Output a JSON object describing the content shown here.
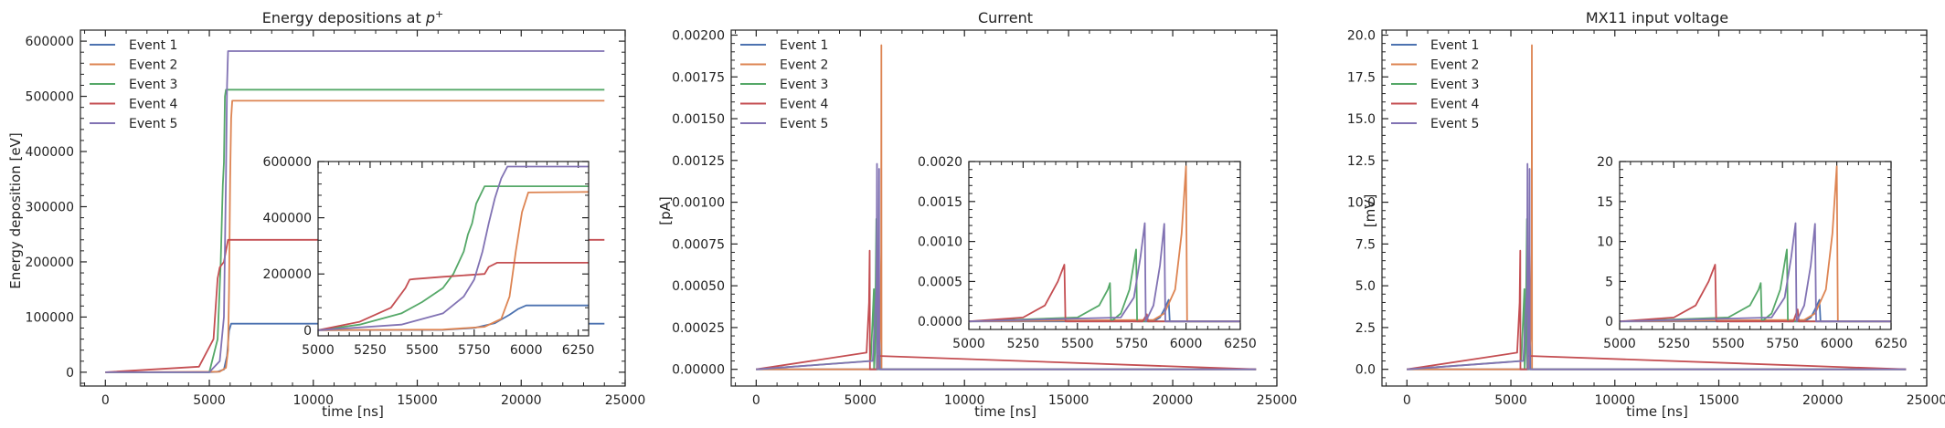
{
  "figure": {
    "legend_placement": "upper-left",
    "background": "#ffffff"
  },
  "series_styles": [
    {
      "name": "Event 1",
      "color": "#4c72b0"
    },
    {
      "name": "Event 2",
      "color": "#dd8452"
    },
    {
      "name": "Event 3",
      "color": "#55a868"
    },
    {
      "name": "Event 4",
      "color": "#c44e52"
    },
    {
      "name": "Event 5",
      "color": "#8172b3"
    }
  ],
  "chart_data": [
    {
      "type": "line",
      "title": "Energy depositions at ",
      "title_symbol": "p",
      "title_sup": "+",
      "xlabel": "time [ns]",
      "ylabel": "Energy deposition [eV]",
      "xlim": [
        -1200,
        25000
      ],
      "ylim": [
        -25000,
        620000
      ],
      "xticks": [
        0,
        5000,
        10000,
        15000,
        20000,
        25000
      ],
      "xtick_labels": [
        "0",
        "5000",
        "10000",
        "15000",
        "20000",
        "25000"
      ],
      "yticks": [
        0,
        100000,
        200000,
        300000,
        400000,
        500000,
        600000
      ],
      "ytick_labels": [
        "0",
        "100000",
        "200000",
        "300000",
        "400000",
        "500000",
        "600000"
      ],
      "grid": false,
      "series": [
        {
          "name": "Event 1",
          "x": [
            0,
            5000,
            5400,
            5700,
            5850,
            5950,
            6050,
            24000
          ],
          "y": [
            0,
            0,
            1000,
            5000,
            30000,
            75000,
            88000,
            88000
          ]
        },
        {
          "name": "Event 2",
          "x": [
            0,
            5500,
            5800,
            5900,
            5950,
            6000,
            6050,
            6100,
            24000
          ],
          "y": [
            0,
            1000,
            8000,
            40000,
            150000,
            350000,
            460000,
            492000,
            492000
          ]
        },
        {
          "name": "Event 3",
          "x": [
            0,
            5000,
            5400,
            5550,
            5620,
            5650,
            5700,
            5750,
            5800,
            24000
          ],
          "y": [
            0,
            0,
            60000,
            200000,
            300000,
            340000,
            380000,
            500000,
            512000,
            512000
          ]
        },
        {
          "name": "Event 4",
          "x": [
            0,
            4500,
            5200,
            5400,
            5450,
            5500,
            5700,
            5800,
            5900,
            24000
          ],
          "y": [
            0,
            10000,
            60000,
            170000,
            180000,
            190000,
            200000,
            220000,
            240000,
            240000
          ]
        },
        {
          "name": "Event 5",
          "x": [
            0,
            5000,
            5500,
            5700,
            5800,
            5850,
            5900,
            24000
          ],
          "y": [
            0,
            0,
            20000,
            100000,
            350000,
            520000,
            582000,
            582000
          ]
        }
      ],
      "inset": {
        "xlim": [
          5000,
          6300
        ],
        "ylim": [
          -20000,
          600000
        ],
        "xticks": [
          5000,
          5250,
          5500,
          5750,
          6000,
          6250
        ],
        "xtick_labels": [
          "5000",
          "5250",
          "5500",
          "5750",
          "6000",
          "6250"
        ],
        "yticks": [
          0,
          200000,
          400000,
          600000
        ],
        "ytick_labels": [
          "0",
          "200000",
          "400000",
          "600000"
        ],
        "series": [
          {
            "name": "Event 1",
            "x": [
              5000,
              5600,
              5750,
              5850,
              5920,
              5960,
              6000,
              6300
            ],
            "y": [
              0,
              1000,
              8000,
              25000,
              55000,
              75000,
              88000,
              88000
            ]
          },
          {
            "name": "Event 2",
            "x": [
              5000,
              5600,
              5800,
              5880,
              5920,
              5950,
              5980,
              6010,
              6300
            ],
            "y": [
              0,
              2000,
              12000,
              40000,
              120000,
              280000,
              420000,
              490000,
              492000
            ]
          },
          {
            "name": "Event 3",
            "x": [
              5000,
              5200,
              5400,
              5500,
              5600,
              5650,
              5700,
              5720,
              5740,
              5760,
              5800,
              6300
            ],
            "y": [
              0,
              20000,
              60000,
              100000,
              150000,
              200000,
              280000,
              340000,
              380000,
              450000,
              512000,
              512000
            ]
          },
          {
            "name": "Event 4",
            "x": [
              5000,
              5200,
              5350,
              5420,
              5440,
              5460,
              5600,
              5800,
              5820,
              5860,
              6300
            ],
            "y": [
              0,
              30000,
              80000,
              150000,
              180000,
              182000,
              190000,
              200000,
              225000,
              240000,
              240000
            ]
          },
          {
            "name": "Event 5",
            "x": [
              5000,
              5400,
              5600,
              5700,
              5750,
              5790,
              5820,
              5850,
              5880,
              5910,
              6300
            ],
            "y": [
              0,
              20000,
              60000,
              120000,
              180000,
              280000,
              380000,
              470000,
              540000,
              582000,
              582000
            ]
          }
        ]
      }
    },
    {
      "type": "line",
      "title": "Current",
      "xlabel": "time [ns]",
      "ylabel": "[pA]",
      "xlim": [
        -1200,
        25000
      ],
      "ylim": [
        -0.0001,
        0.00203
      ],
      "xticks": [
        0,
        5000,
        10000,
        15000,
        20000,
        25000
      ],
      "xtick_labels": [
        "0",
        "5000",
        "10000",
        "15000",
        "20000",
        "25000"
      ],
      "yticks": [
        0,
        0.00025,
        0.0005,
        0.00075,
        0.001,
        0.00125,
        0.0015,
        0.00175,
        0.002
      ],
      "ytick_labels": [
        "0.00000",
        "0.00025",
        "0.00050",
        "0.00075",
        "0.00100",
        "0.00125",
        "0.00150",
        "0.00175",
        "0.00200"
      ],
      "grid": false,
      "series": [
        {
          "name": "Event 1",
          "x": [
            0,
            5800,
            5880,
            5900,
            5920,
            5940,
            24000
          ],
          "y": [
            0,
            0,
            5e-05,
            0.00015,
            0.00025,
            0,
            0
          ]
        },
        {
          "name": "Event 2",
          "x": [
            0,
            5850,
            5950,
            6000,
            6010,
            6020,
            24000
          ],
          "y": [
            0,
            0,
            0.0002,
            0.0007,
            0.00194,
            0,
            0
          ]
        },
        {
          "name": "Event 3",
          "x": [
            0,
            5500,
            5650,
            5660,
            5700,
            5770,
            5790,
            24000
          ],
          "y": [
            0,
            5e-05,
            0.00048,
            0,
            0.0001,
            0.0009,
            0,
            0
          ]
        },
        {
          "name": "Event 4",
          "x": [
            0,
            5300,
            5420,
            5450,
            5460,
            5800,
            5820,
            24000
          ],
          "y": [
            0,
            0.0001,
            0.0004,
            0.00071,
            0,
            0,
            8e-05,
            0
          ]
        },
        {
          "name": "Event 5",
          "x": [
            0,
            5600,
            5780,
            5800,
            5810,
            5880,
            5900,
            5910,
            24000
          ],
          "y": [
            0,
            5e-05,
            0.0005,
            0.00123,
            0,
            0.0006,
            0.0012,
            0,
            0
          ]
        }
      ],
      "inset": {
        "xlim": [
          5000,
          6250
        ],
        "ylim": [
          -0.0001,
          0.002
        ],
        "xticks": [
          5000,
          5250,
          5500,
          5750,
          6000,
          6250
        ],
        "xtick_labels": [
          "5000",
          "5250",
          "5500",
          "5750",
          "6000",
          "6250"
        ],
        "yticks": [
          0,
          0.0005,
          0.001,
          0.0015,
          0.002
        ],
        "ytick_labels": [
          "0.0000",
          "0.0005",
          "0.0010",
          "0.0015",
          "0.0020"
        ],
        "series": [
          {
            "name": "Event 1",
            "x": [
              5000,
              5850,
              5880,
              5900,
              5920,
              5925,
              6250
            ],
            "y": [
              0,
              0,
              5e-05,
              0.00015,
              0.00027,
              0,
              0
            ]
          },
          {
            "name": "Event 2",
            "x": [
              5000,
              5850,
              5900,
              5950,
              5980,
              6000,
              6005,
              6250
            ],
            "y": [
              0,
              2e-05,
              0.0001,
              0.0004,
              0.0011,
              0.00194,
              0,
              0
            ]
          },
          {
            "name": "Event 3",
            "x": [
              5000,
              5500,
              5600,
              5640,
              5650,
              5655,
              5700,
              5740,
              5770,
              5775,
              6250
            ],
            "y": [
              0,
              5e-05,
              0.0002,
              0.0004,
              0.00048,
              0,
              0.0001,
              0.0004,
              0.0009,
              0,
              0
            ]
          },
          {
            "name": "Event 4",
            "x": [
              5000,
              5250,
              5350,
              5410,
              5440,
              5445,
              5800,
              5820,
              5825,
              6250
            ],
            "y": [
              0,
              5e-05,
              0.0002,
              0.0005,
              0.00071,
              0,
              0,
              9e-05,
              0,
              0
            ]
          },
          {
            "name": "Event 5",
            "x": [
              5000,
              5700,
              5760,
              5790,
              5810,
              5815,
              5850,
              5880,
              5900,
              5905,
              6250
            ],
            "y": [
              0,
              5e-05,
              0.0003,
              0.0008,
              0.00123,
              0,
              0.0002,
              0.0007,
              0.00122,
              0,
              0
            ]
          }
        ]
      }
    },
    {
      "type": "line",
      "title": "MX11 input voltage",
      "xlabel": "time [ns]",
      "ylabel": "[mV]",
      "xlim": [
        -1200,
        25000
      ],
      "ylim": [
        -1.0,
        20.3
      ],
      "xticks": [
        0,
        5000,
        10000,
        15000,
        20000,
        25000
      ],
      "xtick_labels": [
        "0",
        "5000",
        "10000",
        "15000",
        "20000",
        "25000"
      ],
      "yticks": [
        0,
        2.5,
        5,
        7.5,
        10,
        12.5,
        15,
        17.5,
        20
      ],
      "ytick_labels": [
        "0.0",
        "2.5",
        "5.0",
        "7.5",
        "10.0",
        "12.5",
        "15.0",
        "17.5",
        "20.0"
      ],
      "grid": false,
      "series": [
        {
          "name": "Event 1",
          "x": [
            0,
            5800,
            5880,
            5900,
            5920,
            5940,
            24000
          ],
          "y": [
            0,
            0,
            0.5,
            1.5,
            2.5,
            0,
            0
          ]
        },
        {
          "name": "Event 2",
          "x": [
            0,
            5850,
            5950,
            6000,
            6010,
            6020,
            24000
          ],
          "y": [
            0,
            0,
            2,
            7,
            19.4,
            0,
            0
          ]
        },
        {
          "name": "Event 3",
          "x": [
            0,
            5500,
            5650,
            5660,
            5700,
            5770,
            5790,
            24000
          ],
          "y": [
            0,
            0.5,
            4.8,
            0,
            1,
            9,
            0,
            0
          ]
        },
        {
          "name": "Event 4",
          "x": [
            0,
            5300,
            5420,
            5450,
            5460,
            5800,
            5820,
            24000
          ],
          "y": [
            0,
            1,
            4,
            7.1,
            0,
            0,
            0.8,
            0
          ]
        },
        {
          "name": "Event 5",
          "x": [
            0,
            5600,
            5780,
            5800,
            5810,
            5880,
            5900,
            5910,
            24000
          ],
          "y": [
            0,
            0.5,
            5,
            12.3,
            0,
            6,
            12,
            0,
            0
          ]
        }
      ],
      "inset": {
        "xlim": [
          5000,
          6250
        ],
        "ylim": [
          -1.0,
          20.0
        ],
        "xticks": [
          5000,
          5250,
          5500,
          5750,
          6000,
          6250
        ],
        "xtick_labels": [
          "5000",
          "5250",
          "5500",
          "5750",
          "6000",
          "6250"
        ],
        "yticks": [
          0,
          5,
          10,
          15,
          20
        ],
        "ytick_labels": [
          "0",
          "5",
          "10",
          "15",
          "20"
        ],
        "series": [
          {
            "name": "Event 1",
            "x": [
              5000,
              5850,
              5880,
              5900,
              5920,
              5925,
              6250
            ],
            "y": [
              0,
              0,
              0.5,
              1.5,
              2.7,
              0,
              0
            ]
          },
          {
            "name": "Event 2",
            "x": [
              5000,
              5850,
              5900,
              5950,
              5980,
              6000,
              6005,
              6250
            ],
            "y": [
              0,
              0.2,
              1,
              4,
              11,
              19.4,
              0,
              0
            ]
          },
          {
            "name": "Event 3",
            "x": [
              5000,
              5500,
              5600,
              5640,
              5650,
              5655,
              5700,
              5740,
              5770,
              5775,
              6250
            ],
            "y": [
              0,
              0.5,
              2,
              4,
              4.8,
              0,
              1,
              4,
              9,
              0,
              0
            ]
          },
          {
            "name": "Event 4",
            "x": [
              5000,
              5250,
              5350,
              5410,
              5440,
              5445,
              5800,
              5820,
              5825,
              6250
            ],
            "y": [
              0,
              0.5,
              2,
              5,
              7.1,
              0,
              0,
              1.5,
              0,
              0
            ]
          },
          {
            "name": "Event 5",
            "x": [
              5000,
              5700,
              5760,
              5790,
              5810,
              5815,
              5850,
              5880,
              5900,
              5905,
              6250
            ],
            "y": [
              0,
              0.5,
              3,
              8,
              12.3,
              0,
              2,
              7,
              12.2,
              0,
              0
            ]
          }
        ]
      }
    }
  ]
}
